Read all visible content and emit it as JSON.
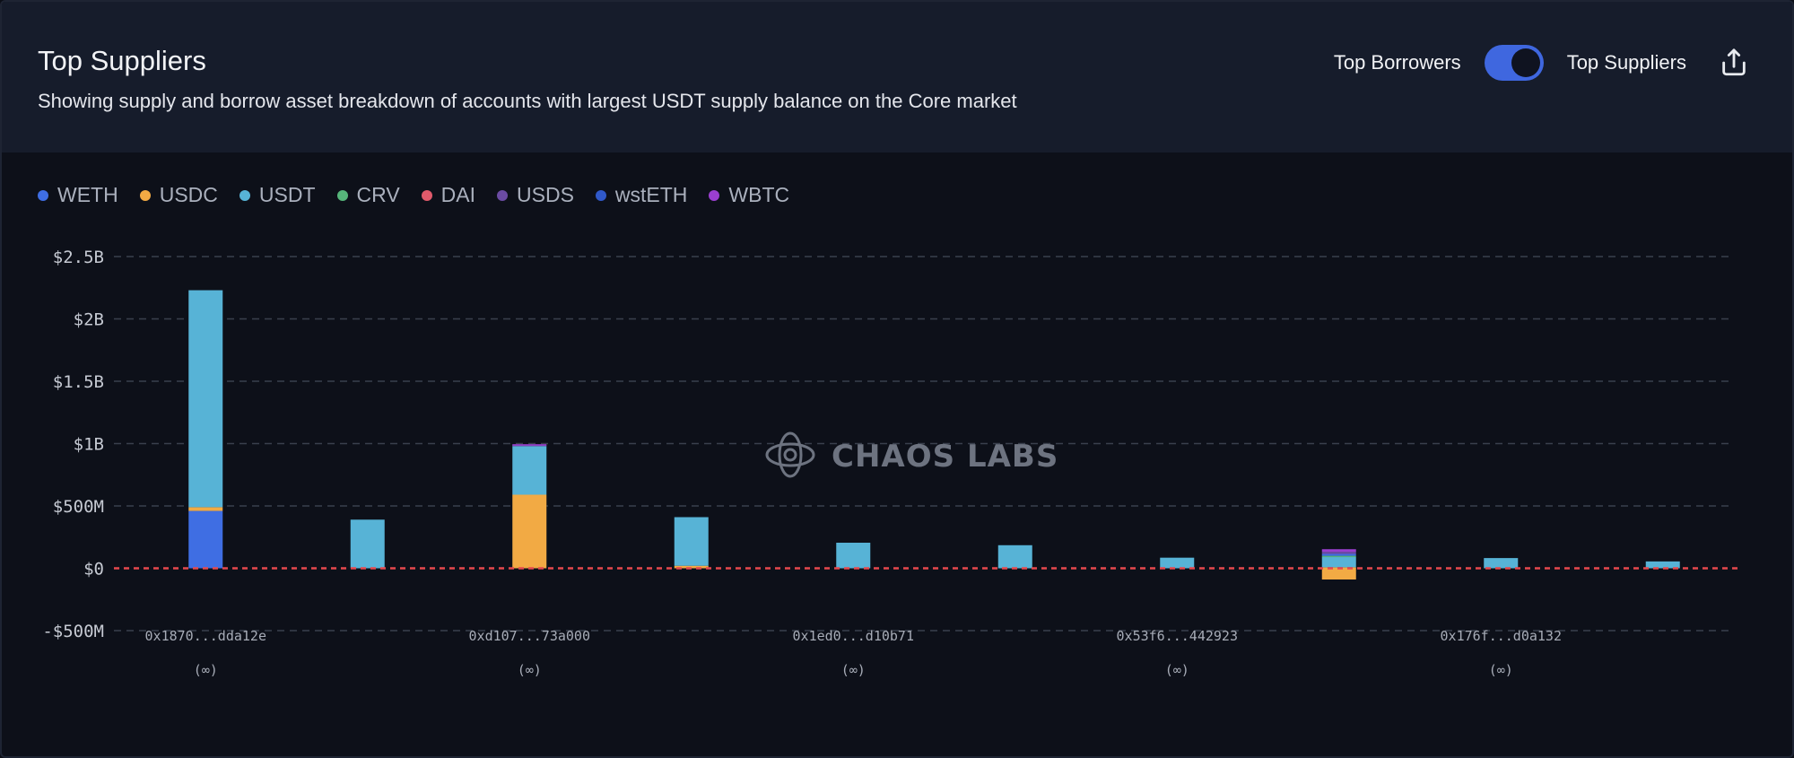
{
  "header": {
    "title": "Top Suppliers",
    "subtitle": "Showing supply and borrow asset breakdown of accounts with largest USDT supply balance on the Core market",
    "toggle_left_label": "Top Borrowers",
    "toggle_right_label": "Top Suppliers",
    "toggle_state": "Top Suppliers"
  },
  "watermark": {
    "brand": "CHAOS LABS"
  },
  "colors": {
    "WETH": "#3f6ee3",
    "USDC": "#f2aa44",
    "USDT": "#57b3d6",
    "CRV": "#56b57a",
    "DAI": "#e05a6b",
    "USDS": "#6b4ba3",
    "wstETH": "#3059c9",
    "WBTC": "#9b3fd0"
  },
  "legend": [
    {
      "label": "WETH",
      "color": "#3f6ee3"
    },
    {
      "label": "USDC",
      "color": "#f2aa44"
    },
    {
      "label": "USDT",
      "color": "#57b3d6"
    },
    {
      "label": "CRV",
      "color": "#56b57a"
    },
    {
      "label": "DAI",
      "color": "#e05a6b"
    },
    {
      "label": "USDS",
      "color": "#6b4ba3"
    },
    {
      "label": "wstETH",
      "color": "#3059c9"
    },
    {
      "label": "WBTC",
      "color": "#9b3fd0"
    }
  ],
  "chart_data": {
    "type": "bar",
    "stacked": true,
    "title": "Top Suppliers",
    "ylim": [
      -500000000,
      2500000000
    ],
    "yticks": [
      {
        "value": 2500000000,
        "label": "$2.5B"
      },
      {
        "value": 2000000000,
        "label": "$2B"
      },
      {
        "value": 1500000000,
        "label": "$1.5B"
      },
      {
        "value": 1000000000,
        "label": "$1B"
      },
      {
        "value": 500000000,
        "label": "$500M"
      },
      {
        "value": 0,
        "label": "$0"
      },
      {
        "value": -500000000,
        "label": "-$500M"
      }
    ],
    "grid": true,
    "zero_line": "dashed-red",
    "categories": [
      {
        "label": "0x1870...dda12e",
        "sublabel": "(∞)"
      },
      {
        "label": "",
        "sublabel": ""
      },
      {
        "label": "0xd107...73a000",
        "sublabel": "(∞)"
      },
      {
        "label": "",
        "sublabel": ""
      },
      {
        "label": "0x1ed0...d10b71",
        "sublabel": "(∞)"
      },
      {
        "label": "",
        "sublabel": ""
      },
      {
        "label": "0x53f6...442923",
        "sublabel": "(∞)"
      },
      {
        "label": "",
        "sublabel": ""
      },
      {
        "label": "0x176f...d0a132",
        "sublabel": "(∞)"
      },
      {
        "label": "",
        "sublabel": ""
      }
    ],
    "bars": [
      {
        "segments": [
          {
            "asset": "WETH",
            "value": 460000000
          },
          {
            "asset": "USDC",
            "value": 30000000
          },
          {
            "asset": "USDT",
            "value": 1740000000
          }
        ]
      },
      {
        "segments": [
          {
            "asset": "USDT",
            "value": 390000000
          }
        ]
      },
      {
        "segments": [
          {
            "asset": "USDC",
            "value": 590000000
          },
          {
            "asset": "USDT",
            "value": 390000000
          },
          {
            "asset": "USDS",
            "value": 10000000
          },
          {
            "asset": "WBTC",
            "value": 5000000
          }
        ]
      },
      {
        "segments": [
          {
            "asset": "USDC",
            "value": 20000000
          },
          {
            "asset": "USDT",
            "value": 390000000
          }
        ]
      },
      {
        "segments": [
          {
            "asset": "USDT",
            "value": 205000000
          }
        ]
      },
      {
        "segments": [
          {
            "asset": "USDT",
            "value": 185000000
          }
        ]
      },
      {
        "segments": [
          {
            "asset": "USDT",
            "value": 85000000
          }
        ]
      },
      {
        "segments": [
          {
            "asset": "USDC",
            "value": 8000000
          },
          {
            "asset": "USDT",
            "value": 82000000
          },
          {
            "asset": "CRV",
            "value": 10000000
          },
          {
            "asset": "WETH",
            "value": 15000000
          },
          {
            "asset": "USDS",
            "value": 18000000
          },
          {
            "asset": "WBTC",
            "value": 20000000
          },
          {
            "asset": "USDC",
            "value": -90000000
          }
        ]
      },
      {
        "segments": [
          {
            "asset": "USDT",
            "value": 82000000
          }
        ]
      },
      {
        "segments": [
          {
            "asset": "USDT",
            "value": 55000000
          }
        ]
      }
    ]
  }
}
